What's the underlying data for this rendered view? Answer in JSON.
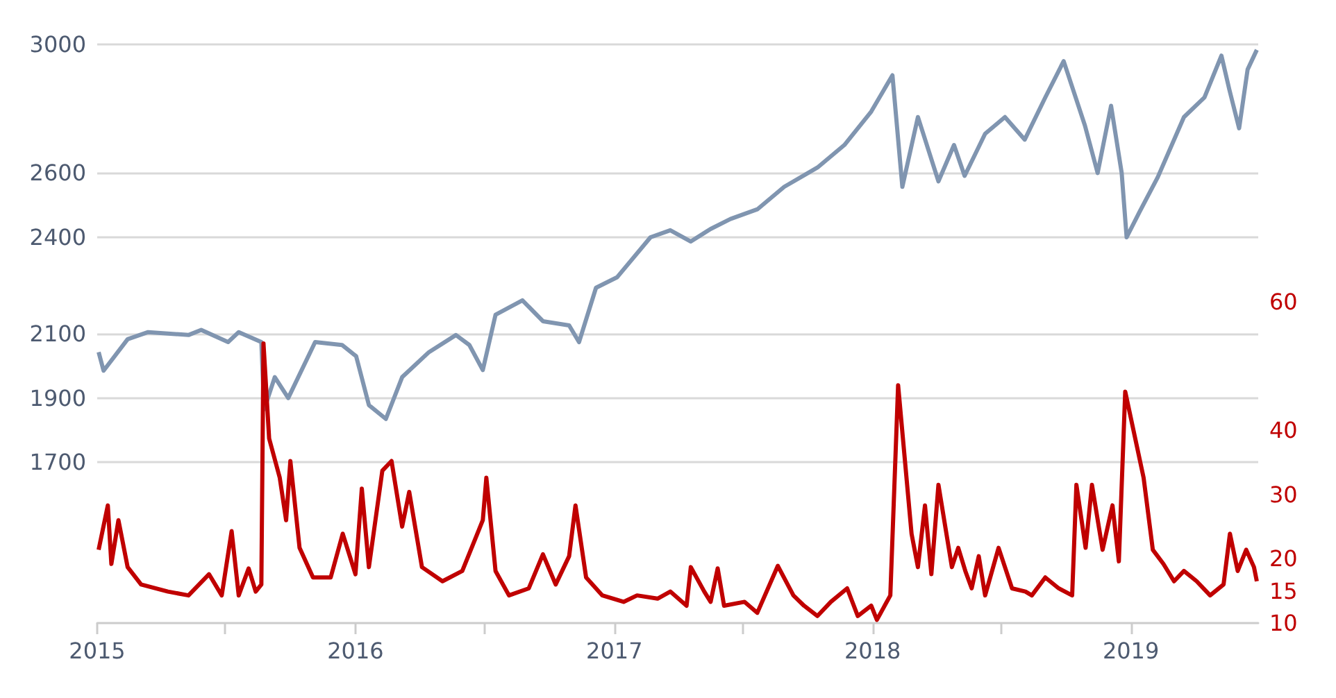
{
  "chart_data": {
    "type": "line",
    "xlim": [
      "2015-01-01",
      "2019-06-30"
    ],
    "xticks": [
      "2015",
      {
        "value": "2015-07-01",
        "label": null
      },
      "2016",
      {
        "value": "2016-07-01",
        "label": null
      },
      "2017",
      {
        "value": "2017-07-01",
        "label": null
      },
      "2018",
      {
        "value": "2018-07-01",
        "label": null
      },
      "2019"
    ],
    "ylim": [
      1200,
      3000
    ],
    "yticks": [
      1700,
      1900,
      2100,
      2400,
      2600,
      3000
    ],
    "y2lim": [
      10,
      100
    ],
    "y2ticks": [
      10,
      15,
      20,
      30,
      40,
      60
    ],
    "grid": "y",
    "marker": "none",
    "line_style": "solid",
    "series": [
      {
        "color": "#8095b0",
        "x": [
          "2015-01-03",
          "2015-01-10",
          "2015-02-13",
          "2015-03-14",
          "2015-05-10",
          "2015-05-28",
          "2015-07-05",
          "2015-07-20",
          "2015-08-21",
          "2015-08-25",
          "2015-09-09",
          "2015-09-28",
          "2015-11-05",
          "2015-12-13",
          "2016-01-02",
          "2016-01-20",
          "2016-02-13",
          "2016-03-07",
          "2016-04-14",
          "2016-05-22",
          "2016-06-10",
          "2016-06-29",
          "2016-07-17",
          "2016-08-24",
          "2016-09-22",
          "2016-10-29",
          "2016-11-12",
          "2016-12-06",
          "2017-01-05",
          "2017-02-21",
          "2017-03-21",
          "2017-04-19",
          "2017-05-17",
          "2017-06-14",
          "2017-07-22",
          "2017-08-29",
          "2017-10-15",
          "2017-11-22",
          "2017-12-30",
          "2018-01-29",
          "2018-02-12",
          "2018-03-06",
          "2018-04-04",
          "2018-04-26",
          "2018-05-11",
          "2018-06-09",
          "2018-07-07",
          "2018-08-04",
          "2018-09-02",
          "2018-09-28",
          "2018-10-28",
          "2018-11-15",
          "2018-12-04",
          "2018-12-19",
          "2018-12-26",
          "2019-01-13",
          "2019-02-08",
          "2019-03-17",
          "2019-04-15",
          "2019-05-09",
          "2019-05-20",
          "2019-06-03",
          "2019-06-15",
          "2019-06-28"
        ],
        "values": [
          2043,
          1985,
          2083,
          2105,
          2096,
          2112,
          2074,
          2105,
          2074,
          1865,
          1965,
          1900,
          2074,
          2065,
          2030,
          1878,
          1835,
          1965,
          2043,
          2096,
          2065,
          1987,
          2159,
          2204,
          2139,
          2126,
          2074,
          2243,
          2276,
          2400,
          2422,
          2387,
          2426,
          2457,
          2487,
          2557,
          2617,
          2687,
          2791,
          2904,
          2557,
          2774,
          2574,
          2687,
          2591,
          2722,
          2774,
          2704,
          2835,
          2948,
          2748,
          2600,
          2809,
          2600,
          2400,
          2478,
          2587,
          2774,
          2835,
          2965,
          2861,
          2739,
          2922,
          2983
        ]
      },
      {
        "color": "#c00000",
        "axis": "y2",
        "x": [
          "2015-01-03",
          "2015-01-16",
          "2015-01-21",
          "2015-01-31",
          "2015-02-13",
          "2015-03-04",
          "2015-04-11",
          "2015-05-10",
          "2015-06-08",
          "2015-06-26",
          "2015-07-10",
          "2015-07-20",
          "2015-08-03",
          "2015-08-13",
          "2015-08-21",
          "2015-08-24",
          "2015-09-01",
          "2015-09-16",
          "2015-09-25",
          "2015-10-01",
          "2015-10-14",
          "2015-11-02",
          "2015-11-27",
          "2015-12-14",
          "2016-01-01",
          "2016-01-10",
          "2016-01-20",
          "2016-02-08",
          "2016-02-21",
          "2016-03-07",
          "2016-03-17",
          "2016-04-04",
          "2016-05-03",
          "2016-05-31",
          "2016-06-29",
          "2016-07-04",
          "2016-07-17",
          "2016-08-05",
          "2016-09-02",
          "2016-09-22",
          "2016-10-10",
          "2016-10-29",
          "2016-11-07",
          "2016-11-22",
          "2016-12-15",
          "2017-01-14",
          "2017-02-02",
          "2017-03-03",
          "2017-03-21",
          "2017-04-13",
          "2017-04-19",
          "2017-05-08",
          "2017-05-17",
          "2017-05-27",
          "2017-06-05",
          "2017-07-04",
          "2017-07-22",
          "2017-08-20",
          "2017-09-11",
          "2017-09-26",
          "2017-10-15",
          "2017-11-03",
          "2017-11-26",
          "2017-12-11",
          "2017-12-30",
          "2018-01-07",
          "2018-01-26",
          "2018-02-06",
          "2018-02-25",
          "2018-03-06",
          "2018-03-16",
          "2018-03-25",
          "2018-04-04",
          "2018-04-23",
          "2018-05-02",
          "2018-05-12",
          "2018-05-21",
          "2018-05-31",
          "2018-06-09",
          "2018-06-28",
          "2018-07-17",
          "2018-08-05",
          "2018-08-14",
          "2018-09-02",
          "2018-09-21",
          "2018-10-10",
          "2018-10-16",
          "2018-10-29",
          "2018-11-07",
          "2018-11-22",
          "2018-12-06",
          "2018-12-15",
          "2018-12-24",
          "2019-01-19",
          "2019-02-01",
          "2019-02-16",
          "2019-03-03",
          "2019-03-17",
          "2019-04-04",
          "2019-04-23",
          "2019-05-12",
          "2019-05-21",
          "2019-06-01",
          "2019-06-13",
          "2019-06-24",
          "2019-06-28"
        ],
        "values": [
          21.4,
          28.3,
          19.2,
          26,
          18.7,
          16,
          14.9,
          14.3,
          17.6,
          14.3,
          24.3,
          14.3,
          18.5,
          14.9,
          16,
          53.5,
          38.7,
          32.6,
          26,
          35.2,
          21.7,
          17.1,
          17.1,
          23.9,
          17.6,
          30.9,
          18.7,
          33.7,
          35.2,
          25,
          30.4,
          18.7,
          16.5,
          18.1,
          26,
          32.6,
          18.1,
          14.3,
          15.4,
          20.7,
          16,
          20.4,
          28.3,
          17.1,
          14.3,
          13.3,
          14.3,
          13.8,
          14.9,
          12.7,
          18.7,
          14.9,
          13.3,
          18.5,
          12.7,
          13.3,
          11.6,
          18.9,
          14.3,
          12.7,
          11.1,
          13.3,
          15.4,
          11.1,
          12.7,
          10.5,
          14.3,
          47,
          23.9,
          18.7,
          28.3,
          17.6,
          31.5,
          18.7,
          21.7,
          18.1,
          15.4,
          20.4,
          14.3,
          21.7,
          15.4,
          14.9,
          14.3,
          17.1,
          15.4,
          14.3,
          31.5,
          21.7,
          31.5,
          21.4,
          28.3,
          19.6,
          46,
          32.6,
          21.4,
          19.2,
          16.5,
          18.1,
          16.5,
          14.3,
          16,
          23.9,
          18.1,
          21.4,
          18.7,
          16.5
        ]
      }
    ]
  }
}
